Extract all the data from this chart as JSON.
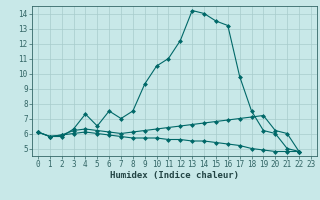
{
  "title": "",
  "xlabel": "Humidex (Indice chaleur)",
  "bg_color": "#c8e8e8",
  "grid_color": "#a8cccc",
  "line_color": "#006868",
  "xlim": [
    -0.5,
    23.5
  ],
  "ylim": [
    4.5,
    14.5
  ],
  "xticks": [
    0,
    1,
    2,
    3,
    4,
    5,
    6,
    7,
    8,
    9,
    10,
    11,
    12,
    13,
    14,
    15,
    16,
    17,
    18,
    19,
    20,
    21,
    22,
    23
  ],
  "yticks": [
    5,
    6,
    7,
    8,
    9,
    10,
    11,
    12,
    13,
    14
  ],
  "series": [
    [
      6.1,
      5.8,
      5.8,
      6.3,
      7.3,
      6.5,
      7.5,
      7.0,
      7.5,
      9.3,
      10.5,
      11.0,
      12.2,
      14.2,
      14.0,
      13.5,
      13.2,
      9.8,
      7.5,
      6.2,
      6.0,
      5.0,
      4.8
    ],
    [
      6.1,
      5.8,
      5.9,
      6.2,
      6.3,
      6.2,
      6.1,
      6.0,
      6.1,
      6.2,
      6.3,
      6.4,
      6.5,
      6.6,
      6.7,
      6.8,
      6.9,
      7.0,
      7.1,
      7.2,
      6.2,
      6.0,
      4.8
    ],
    [
      6.1,
      5.8,
      5.9,
      6.0,
      6.1,
      6.0,
      5.9,
      5.8,
      5.7,
      5.7,
      5.7,
      5.6,
      5.6,
      5.5,
      5.5,
      5.4,
      5.3,
      5.2,
      5.0,
      4.9,
      4.8,
      4.8,
      4.8
    ]
  ],
  "marker_size": 2.5,
  "linewidth": 0.8,
  "xlabel_fontsize": 6.5,
  "tick_fontsize": 5.5
}
